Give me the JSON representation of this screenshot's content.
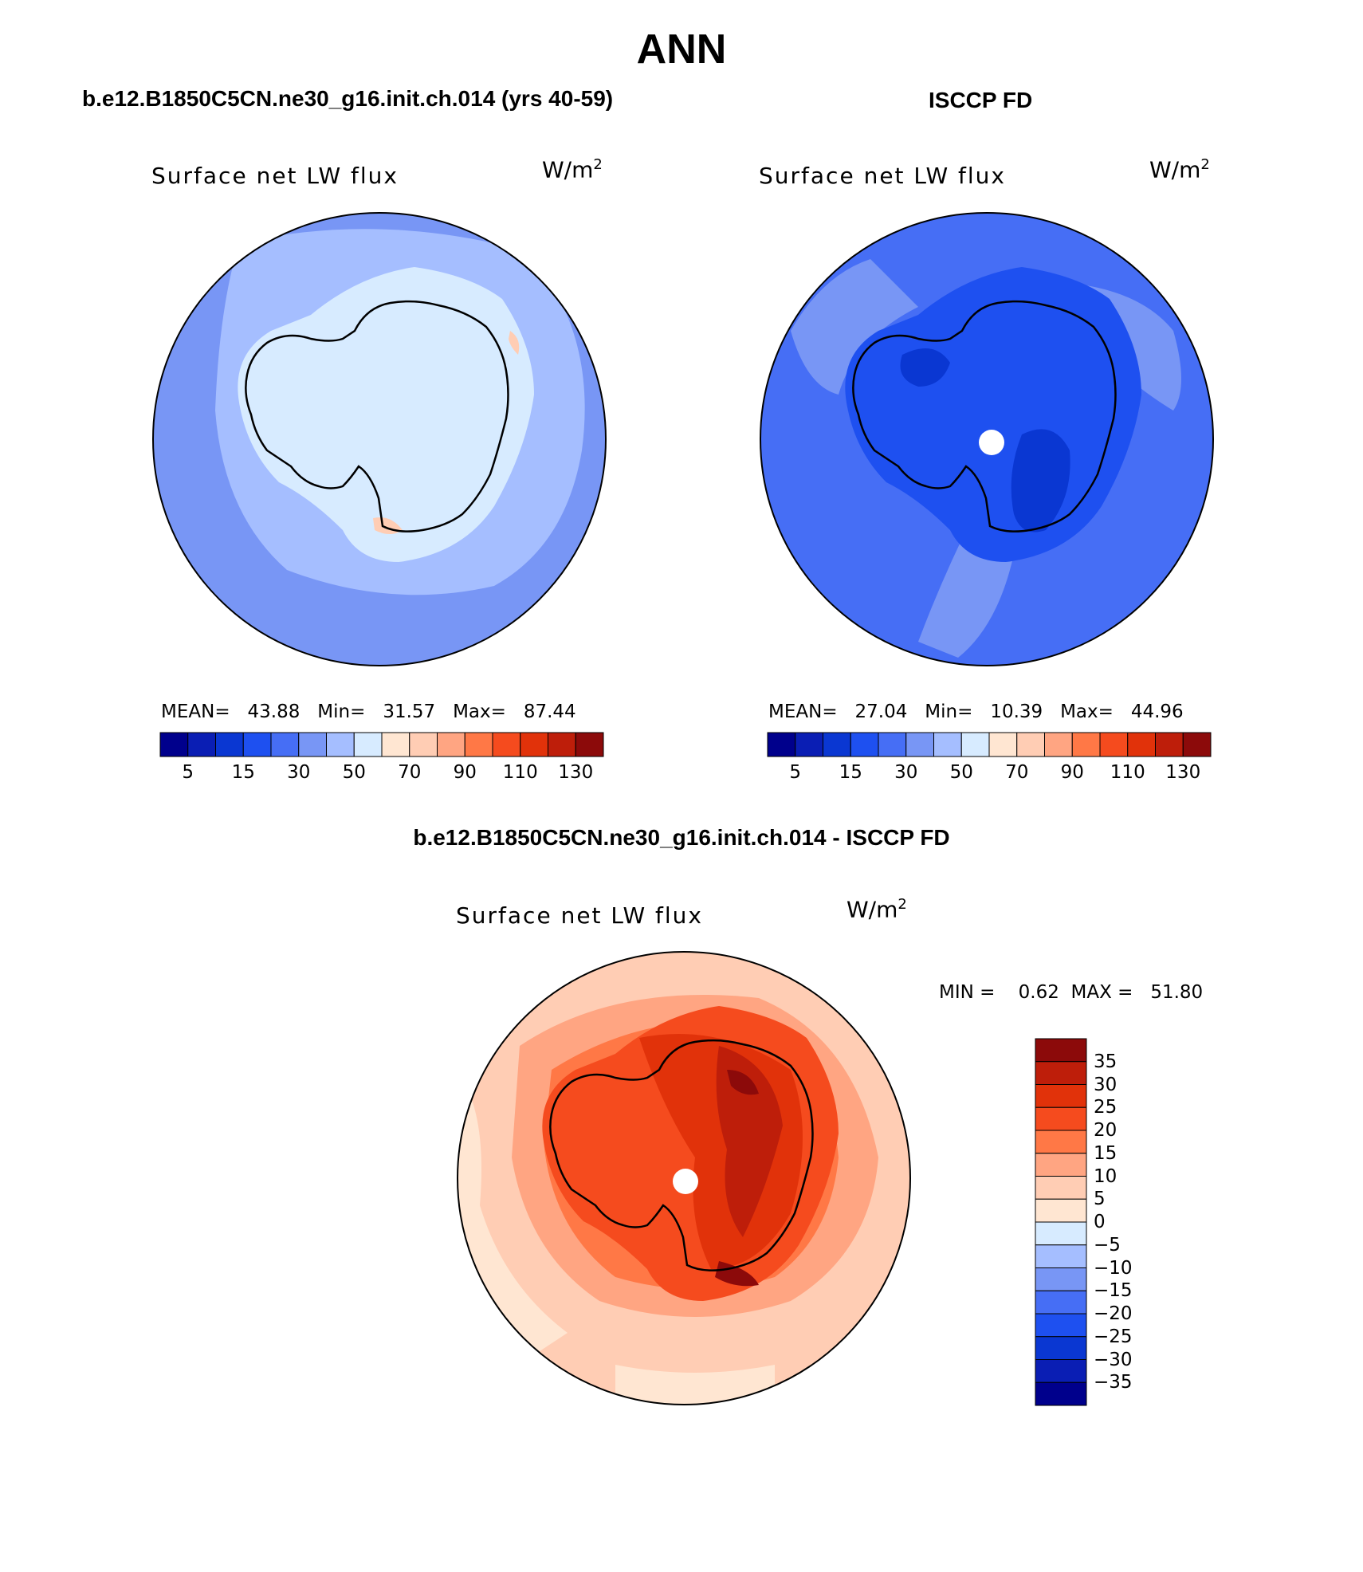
{
  "title": "ANN",
  "panels": {
    "model": {
      "header": "b.e12.B1850C5CN.ne30_g16.init.ch.014 (yrs 40-59)",
      "variable": "Surface net LW flux",
      "units_base": "W/m",
      "units_exp": "2",
      "stats": "MEAN=   43.88   Min=   31.57   Max=   87.44",
      "mean": 43.88,
      "min": 31.57,
      "max": 87.44
    },
    "obs": {
      "header": "ISCCP FD",
      "variable": "Surface net LW flux",
      "units_base": "W/m",
      "units_exp": "2",
      "stats": "MEAN=   27.04   Min=   10.39   Max=   44.96",
      "mean": 27.04,
      "min": 10.39,
      "max": 44.96
    },
    "diff": {
      "header": "b.e12.B1850C5CN.ne30_g16.init.ch.014 - ISCCP FD",
      "variable": "Surface net LW flux",
      "units_base": "W/m",
      "units_exp": "2",
      "stats": "MIN =    0.62  MAX =   51.80",
      "min": 0.62,
      "max": 51.8
    }
  },
  "colorbar_abs": {
    "colors": [
      "#00008c",
      "#0a1eb4",
      "#0a37d2",
      "#1e50f0",
      "#466ef5",
      "#7896f5",
      "#a5beff",
      "#d7ebff",
      "#ffe6d2",
      "#ffcdb4",
      "#ffa582",
      "#ff7846",
      "#f54b1e",
      "#e1320a",
      "#be1e0a",
      "#8c0a0a"
    ],
    "labels": [
      "5",
      "15",
      "30",
      "50",
      "70",
      "90",
      "110",
      "130"
    ]
  },
  "colorbar_diff": {
    "colors": [
      "#8c0a0a",
      "#be1e0a",
      "#e1320a",
      "#f54b1e",
      "#ff7846",
      "#ffa582",
      "#ffcdb4",
      "#ffe6d2",
      "#d7ebff",
      "#a5beff",
      "#7896f5",
      "#466ef5",
      "#1e50f0",
      "#0a37d2",
      "#0a1eb4",
      "#00008c"
    ],
    "labels": [
      "35",
      "30",
      "25",
      "20",
      "15",
      "10",
      "5",
      "0",
      "−5",
      "−10",
      "−15",
      "−20",
      "−25",
      "−30",
      "−35"
    ]
  },
  "map_colors": {
    "model_base": "#a5beff",
    "model_ring": "#7896f5",
    "model_land": "#d7ebff",
    "model_warm": "#ffcdb4",
    "obs_base": "#466ef5",
    "obs_light": "#7896f5",
    "obs_dark": "#1e50f0",
    "obs_darker": "#0a37d2",
    "diff_base": "#ffcdb4",
    "diff_light": "#ffe6d2",
    "diff_mid": "#ffa582",
    "diff_warm": "#ff7846",
    "diff_hot": "#f54b1e",
    "diff_red": "#e1320a",
    "diff_dark": "#be1e0a",
    "diff_darkest": "#8c0a0a"
  }
}
